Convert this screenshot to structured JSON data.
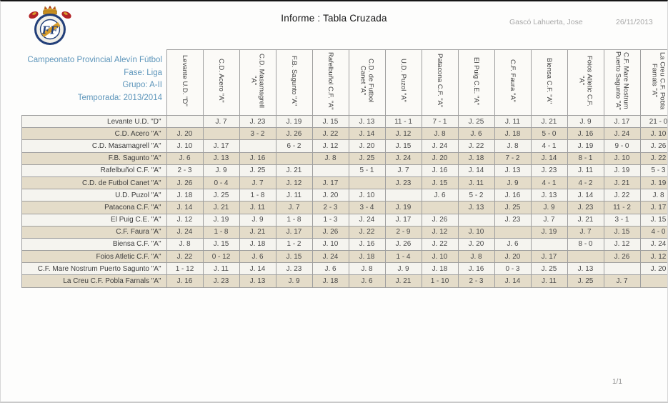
{
  "header": {
    "title": "Informe : Tabla Cruzada",
    "author": "Gascó Lahuerta, Jose",
    "date": "26/11/2013"
  },
  "info": {
    "competition": "Campeonato Provincial Alevín Fútbol",
    "fase": "Fase: Liga",
    "grupo": "Grupo: A-II",
    "temporada": "Temporada: 2013/2014"
  },
  "footer": {
    "page": "1/1"
  },
  "colors": {
    "accent_blue": "#5E96BB",
    "row_light": "#F5F4EF",
    "row_beige": "#E4DCC9",
    "border_gray": "#9F9F9F",
    "logo_navy": "#23407A",
    "logo_gold": "#D89C2A",
    "logo_red": "#B32427"
  },
  "table": {
    "teams": [
      "Levante U.D. \"D\"",
      "C.D. Acero \"A\"",
      "C.D. Masamagrell \"A\"",
      "F.B. Sagunto \"A\"",
      "Rafelbuñol C.F. \"A\"",
      "C.D. de Futbol Canet \"A\"",
      "U.D. Puzol \"A\"",
      "Patacona C.F. \"A\"",
      "El Puig C.E. \"A\"",
      "C.F. Faura \"A\"",
      "Biensa C.F. \"A\"",
      "Foios Atletic C.F. \"A\"",
      "C.F. Mare Nostrum Puerto Sagunto \"A\"",
      "La Creu C.F. Pobla Farnals \"A\""
    ],
    "cells": [
      [
        "",
        "J. 7",
        "J. 23",
        "J. 19",
        "J. 15",
        "J. 13",
        "11 - 1",
        "7 - 1",
        "J. 25",
        "J. 11",
        "J. 21",
        "J. 9",
        "J. 17",
        "21 - 0"
      ],
      [
        "J. 20",
        "",
        "3 - 2",
        "J. 26",
        "J. 22",
        "J. 14",
        "J. 12",
        "J. 8",
        "J. 6",
        "J. 18",
        "5 - 0",
        "J. 16",
        "J. 24",
        "J. 10"
      ],
      [
        "J. 10",
        "J. 17",
        "",
        "6 - 2",
        "J. 12",
        "J. 20",
        "J. 15",
        "J. 24",
        "J. 22",
        "J. 8",
        "4 - 1",
        "J. 19",
        "9 - 0",
        "J. 26"
      ],
      [
        "J. 6",
        "J. 13",
        "J. 16",
        "",
        "J. 8",
        "J. 25",
        "J. 24",
        "J. 20",
        "J. 18",
        "7 - 2",
        "J. 14",
        "8 - 1",
        "J. 10",
        "J. 22"
      ],
      [
        "2 - 3",
        "J. 9",
        "J. 25",
        "J. 21",
        "",
        "5 - 1",
        "J. 7",
        "J. 16",
        "J. 14",
        "J. 13",
        "J. 23",
        "J. 11",
        "J. 19",
        "5 - 3"
      ],
      [
        "J. 26",
        "0 - 4",
        "J. 7",
        "J. 12",
        "J. 17",
        "",
        "J. 23",
        "J. 15",
        "J. 11",
        "J. 9",
        "4 - 1",
        "4 - 2",
        "J. 21",
        "J. 19"
      ],
      [
        "J. 18",
        "J. 25",
        "1 - 8",
        "J. 11",
        "J. 20",
        "J. 10",
        "",
        "J. 6",
        "5 - 2",
        "J. 16",
        "J. 13",
        "J. 14",
        "J. 22",
        "J. 8"
      ],
      [
        "J. 14",
        "J. 21",
        "J. 11",
        "J. 7",
        "2 - 3",
        "3 - 4",
        "J. 19",
        "",
        "J. 13",
        "J. 25",
        "J. 9",
        "J. 23",
        "11 - 2",
        "J. 17"
      ],
      [
        "J. 12",
        "J. 19",
        "J. 9",
        "1 - 8",
        "1 - 3",
        "J. 24",
        "J. 17",
        "J. 26",
        "",
        "J. 23",
        "J. 7",
        "J. 21",
        "3 - 1",
        "J. 15"
      ],
      [
        "J. 24",
        "1 - 8",
        "J. 21",
        "J. 17",
        "J. 26",
        "J. 22",
        "2 - 9",
        "J. 12",
        "J. 10",
        "",
        "J. 19",
        "J. 7",
        "J. 15",
        "4 - 0"
      ],
      [
        "J. 8",
        "J. 15",
        "J. 18",
        "1 - 2",
        "J. 10",
        "J. 16",
        "J. 26",
        "J. 22",
        "J. 20",
        "J. 6",
        "",
        "8 - 0",
        "J. 12",
        "J. 24"
      ],
      [
        "J. 22",
        "0 - 12",
        "J. 6",
        "J. 15",
        "J. 24",
        "J. 18",
        "1 - 4",
        "J. 10",
        "J. 8",
        "J. 20",
        "J. 17",
        "",
        "J. 26",
        "J. 12"
      ],
      [
        "1 - 12",
        "J. 11",
        "J. 14",
        "J. 23",
        "J. 6",
        "J. 8",
        "J. 9",
        "J. 18",
        "J. 16",
        "0 - 3",
        "J. 25",
        "J. 13",
        "",
        "J. 20"
      ],
      [
        "J. 16",
        "J. 23",
        "J. 13",
        "J. 9",
        "J. 18",
        "J. 6",
        "J. 21",
        "1 - 10",
        "2 - 3",
        "J. 14",
        "J. 11",
        "J. 25",
        "J. 7",
        ""
      ]
    ]
  }
}
